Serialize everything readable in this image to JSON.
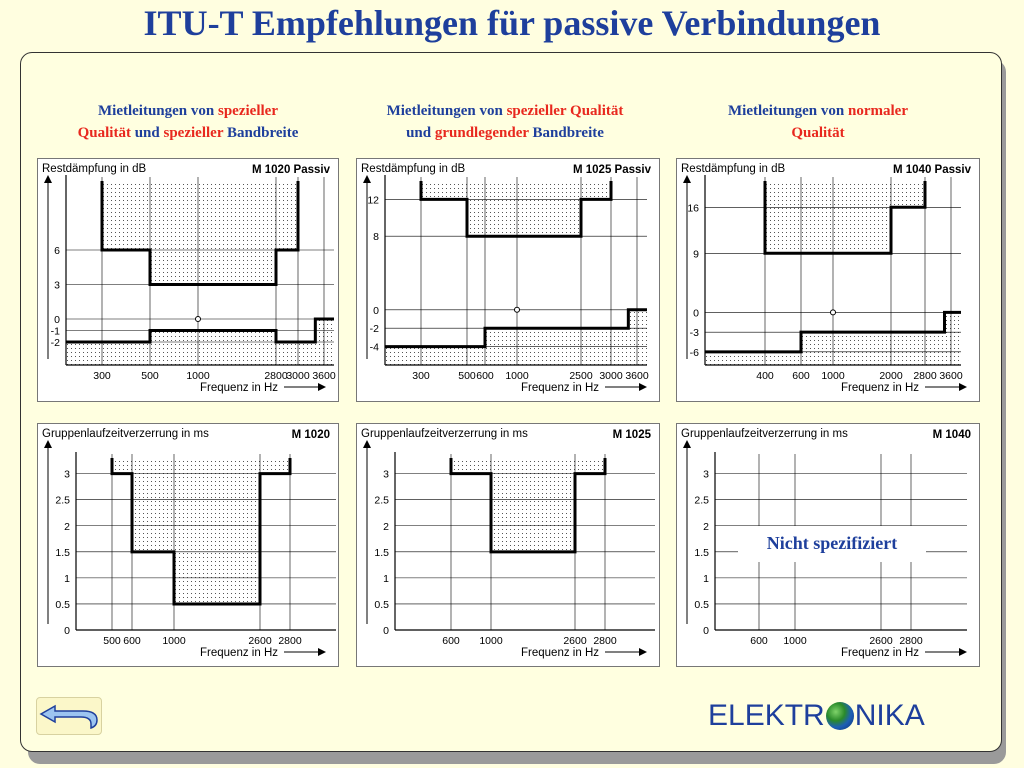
{
  "title": "ITU-T Empfehlungen für passive Verbindungen",
  "headers": [
    {
      "parts": [
        {
          "t": "Mietleitungen von ",
          "c": "b"
        },
        {
          "t": "spezieller",
          "c": "r"
        },
        {
          "t": "\n",
          "c": "b"
        },
        {
          "t": "Qualität",
          "c": "r"
        },
        {
          "t": " und ",
          "c": "b"
        },
        {
          "t": "spezieller",
          "c": "r"
        },
        {
          "t": " Bandbreite",
          "c": "b"
        }
      ]
    },
    {
      "parts": [
        {
          "t": "Mietleitungen von ",
          "c": "b"
        },
        {
          "t": "spezieller Qualität",
          "c": "r"
        },
        {
          "t": "\n",
          "c": "b"
        },
        {
          "t": "und ",
          "c": "b"
        },
        {
          "t": "grundlegender",
          "c": "r"
        },
        {
          "t": " Bandbreite",
          "c": "b"
        }
      ]
    },
    {
      "parts": [
        {
          "t": "Mietleitungen von ",
          "c": "b"
        },
        {
          "t": "normaler",
          "c": "r"
        },
        {
          "t": "\n",
          "c": "b"
        },
        {
          "t": "Qualität",
          "c": "r"
        }
      ]
    }
  ],
  "not_specified": "Nicht spezifiziert",
  "logo": {
    "left": "ELEKTR",
    "right": "NIKA"
  },
  "colors": {
    "title": "#1e3f9c",
    "accent_red": "#e8281e",
    "background": "#fffee0"
  },
  "icons": {
    "back": "back-arrow-icon",
    "globe": "globe-icon"
  },
  "diagrams": [
    {
      "id": "m1020-att",
      "ylabel": "Restdämpfung in dB",
      "badge": "M 1020 Passiv",
      "xlabel": "Frequenz in Hz",
      "yticks": [
        {
          "v": 6,
          "l": "6"
        },
        {
          "v": 3,
          "l": "3"
        },
        {
          "v": 0,
          "l": "0"
        },
        {
          "v": -1,
          "l": "-1"
        },
        {
          "v": -2,
          "l": "-2"
        }
      ],
      "yrange": [
        -4,
        12
      ],
      "xticks": [
        {
          "v": 300,
          "l": "300"
        },
        {
          "v": 500,
          "l": "500"
        },
        {
          "v": 1000,
          "l": "1000"
        },
        {
          "v": 2800,
          "l": "2800"
        },
        {
          "v": 3000,
          "l": "3000"
        },
        {
          "v": 3600,
          "l": "3600"
        }
      ],
      "xdisplay": [
        [
          0,
          0
        ],
        [
          300,
          36
        ],
        [
          500,
          84
        ],
        [
          1000,
          132
        ],
        [
          2800,
          210
        ],
        [
          3000,
          232
        ],
        [
          3600,
          258
        ],
        [
          3700,
          268
        ]
      ],
      "upper": [
        [
          300,
          12
        ],
        [
          300,
          6
        ],
        [
          500,
          6
        ],
        [
          500,
          3
        ],
        [
          2800,
          3
        ],
        [
          2800,
          6
        ],
        [
          3000,
          6
        ],
        [
          3000,
          12
        ]
      ],
      "lower": [
        [
          0,
          -2
        ],
        [
          500,
          -2
        ],
        [
          500,
          -1
        ],
        [
          2800,
          -1
        ],
        [
          2800,
          -2
        ],
        [
          3400,
          -2
        ],
        [
          3400,
          0
        ],
        [
          3700,
          0
        ]
      ],
      "marker": [
        1000,
        0
      ]
    },
    {
      "id": "m1025-att",
      "ylabel": "Restdämpfung in dB",
      "badge": "M 1025 Passiv",
      "xlabel": "Frequenz in Hz",
      "yticks": [
        {
          "v": 12,
          "l": "12"
        },
        {
          "v": 8,
          "l": "8"
        },
        {
          "v": 0,
          "l": "0"
        },
        {
          "v": -2,
          "l": "-2"
        },
        {
          "v": -4,
          "l": "-4"
        }
      ],
      "yrange": [
        -6,
        14
      ],
      "xticks": [
        {
          "v": 300,
          "l": "300"
        },
        {
          "v": 500,
          "l": "500"
        },
        {
          "v": 600,
          "l": "600"
        },
        {
          "v": 1000,
          "l": "1000"
        },
        {
          "v": 2500,
          "l": "2500"
        },
        {
          "v": 3000,
          "l": "3000"
        },
        {
          "v": 3600,
          "l": "3600"
        }
      ],
      "xdisplay": [
        [
          0,
          0
        ],
        [
          300,
          36
        ],
        [
          500,
          82
        ],
        [
          600,
          100
        ],
        [
          1000,
          132
        ],
        [
          2500,
          196
        ],
        [
          3000,
          226
        ],
        [
          3600,
          252
        ],
        [
          3700,
          262
        ]
      ],
      "upper": [
        [
          300,
          14
        ],
        [
          300,
          12
        ],
        [
          500,
          12
        ],
        [
          500,
          8
        ],
        [
          2500,
          8
        ],
        [
          2500,
          12
        ],
        [
          3000,
          12
        ],
        [
          3000,
          14
        ]
      ],
      "lower": [
        [
          0,
          -4
        ],
        [
          600,
          -4
        ],
        [
          600,
          -2
        ],
        [
          3400,
          -2
        ],
        [
          3400,
          0
        ],
        [
          3700,
          0
        ]
      ],
      "marker": [
        1000,
        0
      ]
    },
    {
      "id": "m1040-att",
      "ylabel": "Restdämpfung in dB",
      "badge": "M 1040 Passiv",
      "xlabel": "Frequenz in Hz",
      "yticks": [
        {
          "v": 16,
          "l": "16"
        },
        {
          "v": 9,
          "l": "9"
        },
        {
          "v": 0,
          "l": "0"
        },
        {
          "v": -3,
          "l": "-3"
        },
        {
          "v": -6,
          "l": "-6"
        }
      ],
      "yrange": [
        -8,
        20
      ],
      "xticks": [
        {
          "v": 400,
          "l": "400"
        },
        {
          "v": 600,
          "l": "600"
        },
        {
          "v": 1000,
          "l": "1000"
        },
        {
          "v": 2000,
          "l": "2000"
        },
        {
          "v": 2800,
          "l": "2800"
        },
        {
          "v": 3600,
          "l": "3600"
        }
      ],
      "xdisplay": [
        [
          0,
          0
        ],
        [
          400,
          60
        ],
        [
          600,
          96
        ],
        [
          1000,
          128
        ],
        [
          2000,
          186
        ],
        [
          2800,
          220
        ],
        [
          3600,
          246
        ],
        [
          3700,
          256
        ]
      ],
      "upper": [
        [
          400,
          20
        ],
        [
          400,
          9
        ],
        [
          2000,
          9
        ],
        [
          2000,
          16
        ],
        [
          2800,
          16
        ],
        [
          2800,
          20
        ]
      ],
      "lower": [
        [
          0,
          -6
        ],
        [
          600,
          -6
        ],
        [
          600,
          -3
        ],
        [
          3400,
          -3
        ],
        [
          3400,
          0
        ],
        [
          3700,
          0
        ]
      ],
      "marker": [
        1000,
        0
      ]
    },
    {
      "id": "m1020-gd",
      "ylabel": "Gruppenlaufzeitverzerrung in ms",
      "badge": "M 1020",
      "xlabel": "Frequenz in Hz",
      "yticks": [
        {
          "v": 3,
          "l": "3"
        },
        {
          "v": 2.5,
          "l": "2.5"
        },
        {
          "v": 2,
          "l": "2"
        },
        {
          "v": 1.5,
          "l": "1.5"
        },
        {
          "v": 1,
          "l": "1"
        },
        {
          "v": 0.5,
          "l": "0.5"
        },
        {
          "v": 0,
          "l": "0"
        }
      ],
      "yrange": [
        0,
        3.3
      ],
      "xticks": [
        {
          "v": 500,
          "l": "500"
        },
        {
          "v": 600,
          "l": "600"
        },
        {
          "v": 1000,
          "l": "1000"
        },
        {
          "v": 2600,
          "l": "2600"
        },
        {
          "v": 2800,
          "l": "2800"
        }
      ],
      "xdisplay": [
        [
          0,
          0
        ],
        [
          500,
          36
        ],
        [
          600,
          56
        ],
        [
          1000,
          98
        ],
        [
          2600,
          184
        ],
        [
          2800,
          214
        ],
        [
          3400,
          250
        ],
        [
          3500,
          260
        ]
      ],
      "upper": [
        [
          500,
          3.3
        ],
        [
          500,
          3
        ],
        [
          600,
          3
        ],
        [
          600,
          1.5
        ],
        [
          1000,
          1.5
        ],
        [
          1000,
          0.5
        ],
        [
          2600,
          0.5
        ],
        [
          2600,
          3
        ],
        [
          2800,
          3
        ],
        [
          2800,
          3.3
        ]
      ],
      "lower": null,
      "marker": null
    },
    {
      "id": "m1025-gd",
      "ylabel": "Gruppenlaufzeitverzerrung in ms",
      "badge": "M 1025",
      "xlabel": "Frequenz in Hz",
      "yticks": [
        {
          "v": 3,
          "l": "3"
        },
        {
          "v": 2.5,
          "l": "2.5"
        },
        {
          "v": 2,
          "l": "2"
        },
        {
          "v": 1.5,
          "l": "1.5"
        },
        {
          "v": 1,
          "l": "1"
        },
        {
          "v": 0.5,
          "l": "0.5"
        },
        {
          "v": 0,
          "l": "0"
        }
      ],
      "yrange": [
        0,
        3.3
      ],
      "xticks": [
        {
          "v": 600,
          "l": "600"
        },
        {
          "v": 1000,
          "l": "1000"
        },
        {
          "v": 2600,
          "l": "2600"
        },
        {
          "v": 2800,
          "l": "2800"
        }
      ],
      "xdisplay": [
        [
          0,
          0
        ],
        [
          600,
          56
        ],
        [
          1000,
          96
        ],
        [
          2600,
          180
        ],
        [
          2800,
          210
        ],
        [
          3400,
          250
        ],
        [
          3500,
          260
        ]
      ],
      "upper": [
        [
          600,
          3.3
        ],
        [
          600,
          3
        ],
        [
          1000,
          3
        ],
        [
          1000,
          1.5
        ],
        [
          2600,
          1.5
        ],
        [
          2600,
          3
        ],
        [
          2800,
          3
        ],
        [
          2800,
          3.3
        ]
      ],
      "lower": null,
      "marker": null
    },
    {
      "id": "m1040-gd",
      "ylabel": "Gruppenlaufzeitverzerrung in ms",
      "badge": "M 1040",
      "xlabel": "Frequenz in Hz",
      "yticks": [
        {
          "v": 3,
          "l": "3"
        },
        {
          "v": 2.5,
          "l": "2.5"
        },
        {
          "v": 2,
          "l": "2"
        },
        {
          "v": 1.5,
          "l": "1.5"
        },
        {
          "v": 1,
          "l": "1"
        },
        {
          "v": 0.5,
          "l": "0.5"
        },
        {
          "v": 0,
          "l": "0"
        }
      ],
      "yrange": [
        0,
        3.3
      ],
      "xticks": [
        {
          "v": 600,
          "l": "600"
        },
        {
          "v": 1000,
          "l": "1000"
        },
        {
          "v": 2600,
          "l": "2600"
        },
        {
          "v": 2800,
          "l": "2800"
        }
      ],
      "xdisplay": [
        [
          0,
          0
        ],
        [
          600,
          44
        ],
        [
          1000,
          80
        ],
        [
          2600,
          166
        ],
        [
          2800,
          196
        ],
        [
          3400,
          240
        ],
        [
          3500,
          252
        ]
      ],
      "upper": null,
      "lower": null,
      "marker": null
    }
  ]
}
